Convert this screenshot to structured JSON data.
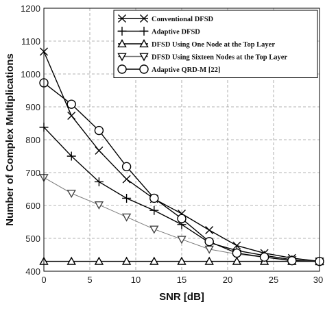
{
  "chart_data": {
    "type": "line",
    "xlabel": "SNR [dB]",
    "ylabel": "Number of Complex Multiplications",
    "xlim": [
      0,
      30
    ],
    "ylim": [
      400,
      1200
    ],
    "xticks": [
      0,
      5,
      10,
      15,
      20,
      25,
      30
    ],
    "yticks": [
      400,
      500,
      600,
      700,
      800,
      900,
      1000,
      1100,
      1200
    ],
    "grid": true,
    "legend_position": "top-right",
    "x": [
      0,
      3,
      6,
      9,
      12,
      15,
      18,
      21,
      24,
      27,
      30
    ],
    "series": [
      {
        "name": "Conventional DFSD",
        "marker": "x",
        "color": "#000000",
        "values": [
          1068,
          873,
          767,
          680,
          620,
          575,
          525,
          478,
          455,
          440,
          430
        ]
      },
      {
        "name": "Adaptive DFSD",
        "marker": "plus",
        "color": "#000000",
        "values": [
          838,
          750,
          672,
          622,
          585,
          542,
          487,
          463,
          448,
          435,
          430
        ]
      },
      {
        "name": "DFSD Using One Node at the Top Layer",
        "marker": "triangle-up",
        "color": "#000000",
        "values": [
          430,
          430,
          430,
          430,
          430,
          430,
          430,
          430,
          430,
          430,
          430
        ]
      },
      {
        "name": "DFSD Using Sixteen Nodes at the Top Layer",
        "marker": "triangle-down",
        "color": "#7a7a7a",
        "values": [
          685,
          637,
          602,
          565,
          528,
          497,
          467,
          452,
          442,
          435,
          430
        ]
      },
      {
        "name": "Adaptive QRD-M [22]",
        "marker": "circle",
        "color": "#000000",
        "values": [
          973,
          908,
          828,
          718,
          622,
          560,
          490,
          455,
          443,
          432,
          430
        ]
      }
    ]
  }
}
